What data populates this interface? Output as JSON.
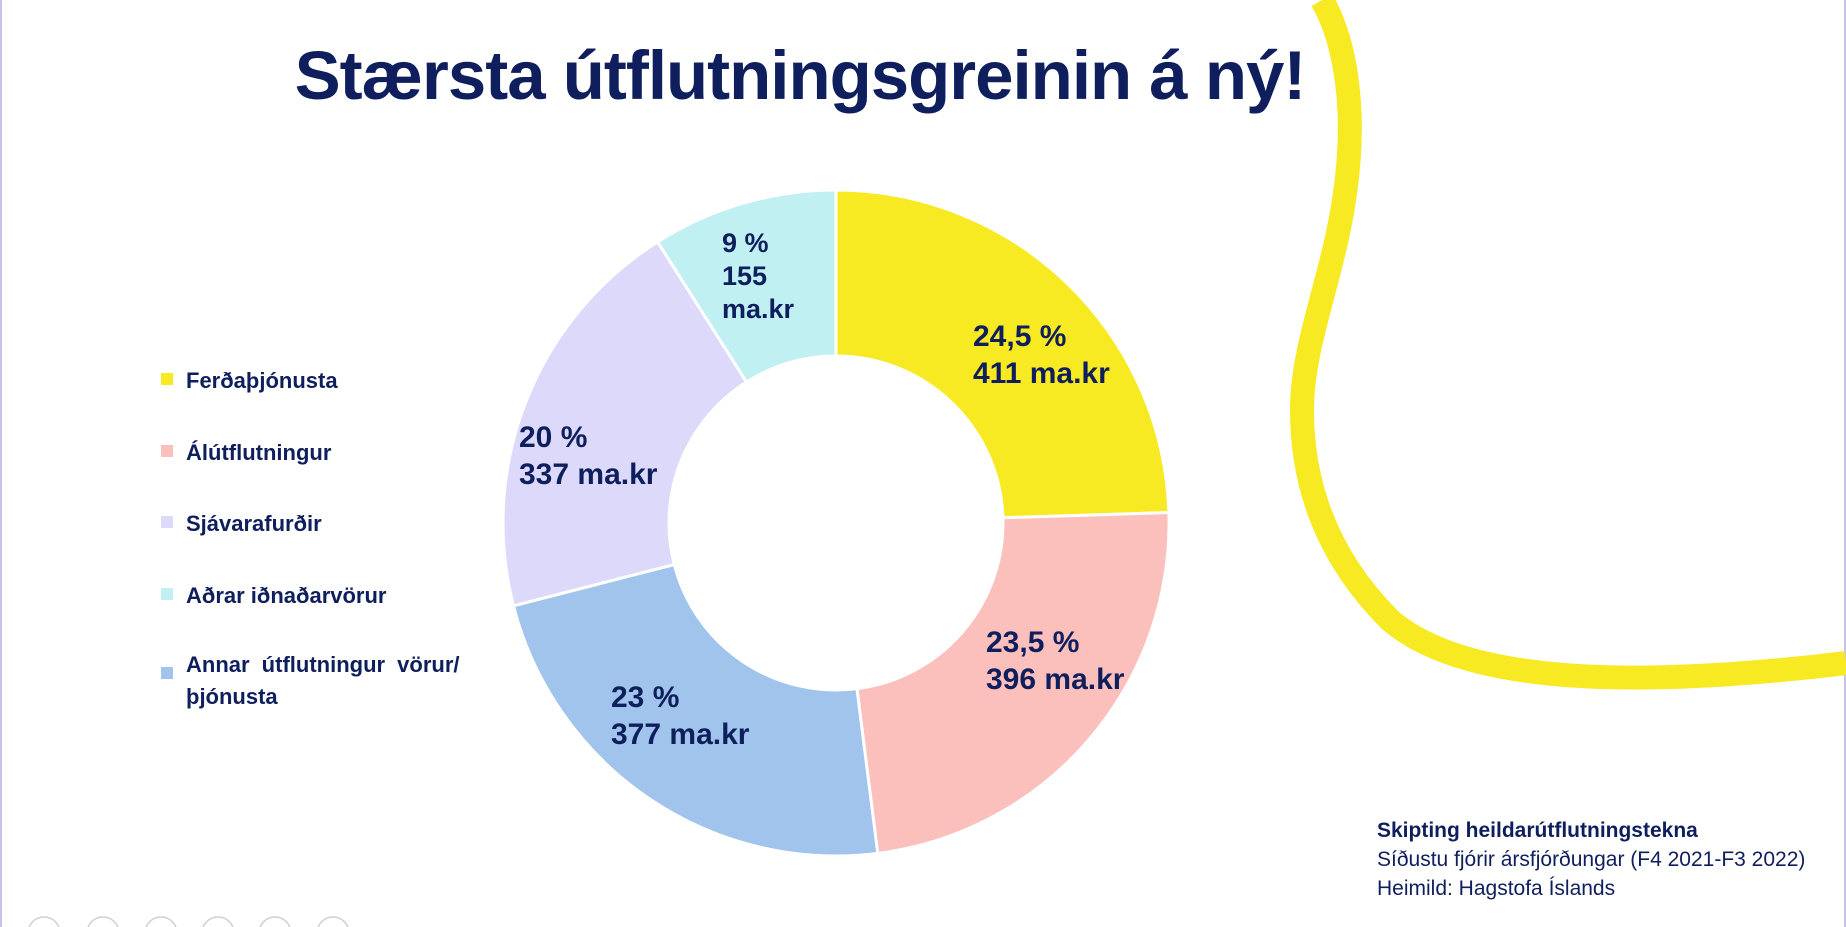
{
  "slide": {
    "title": "Stærsta útflutningsgreinin á ný!"
  },
  "chart_data": {
    "type": "pie",
    "title": "Stærsta útflutningsgreinin á ný!",
    "legend_position": "left",
    "slices": [
      {
        "name": "Ferðaþjónusta",
        "percent": 24.5,
        "value": 411,
        "unit": "ma.kr",
        "label_lines": [
          "24,5 %",
          "411 ma.kr"
        ],
        "color": "#f7ea23"
      },
      {
        "name": "Álútflutningur",
        "percent": 23.5,
        "value": 396,
        "unit": "ma.kr",
        "label_lines": [
          "23,5 %",
          "396 ma.kr"
        ],
        "color": "#fbbfbc"
      },
      {
        "name": "Annar útflutningur vörur/ þjónusta",
        "percent": 23,
        "value": 377,
        "unit": "ma.kr",
        "label_lines": [
          "23 %",
          "377 ma.kr"
        ],
        "color": "#a0c4eb"
      },
      {
        "name": "Sjávarafurðir",
        "percent": 20,
        "value": 337,
        "unit": "ma.kr",
        "label_lines": [
          "20 %",
          "337 ma.kr"
        ],
        "color": "#dcd9fb"
      },
      {
        "name": "Aðrar iðnaðarvörur",
        "percent": 9,
        "value": 155,
        "unit": "ma.kr",
        "label_lines": [
          "9 %",
          "155",
          "ma.kr"
        ],
        "color": "#c0f0f2"
      }
    ]
  },
  "legend": [
    {
      "label": "Ferðaþjónusta",
      "color": "#f7ea23"
    },
    {
      "label": "Álútflutningur",
      "color": "#fbbfbc"
    },
    {
      "label": "Sjávarafurðir",
      "color": "#dcd9fb"
    },
    {
      "label": "Aðrar iðnaðarvörur",
      "color": "#c0f0f2"
    },
    {
      "label_line1": "Annar útflutningur vörur/",
      "label_line2": "þjónusta",
      "color": "#a0c4eb"
    }
  ],
  "source": {
    "heading": "Skipting heildarútflutningstekna",
    "period": "Síðustu fjórir ársfjórðungar (F4 2021-F3 2022)",
    "reference": "Heimild: Hagstofa Íslands"
  },
  "theme": {
    "title_color": "#0f1e5c",
    "accent": "#f7ea23"
  }
}
